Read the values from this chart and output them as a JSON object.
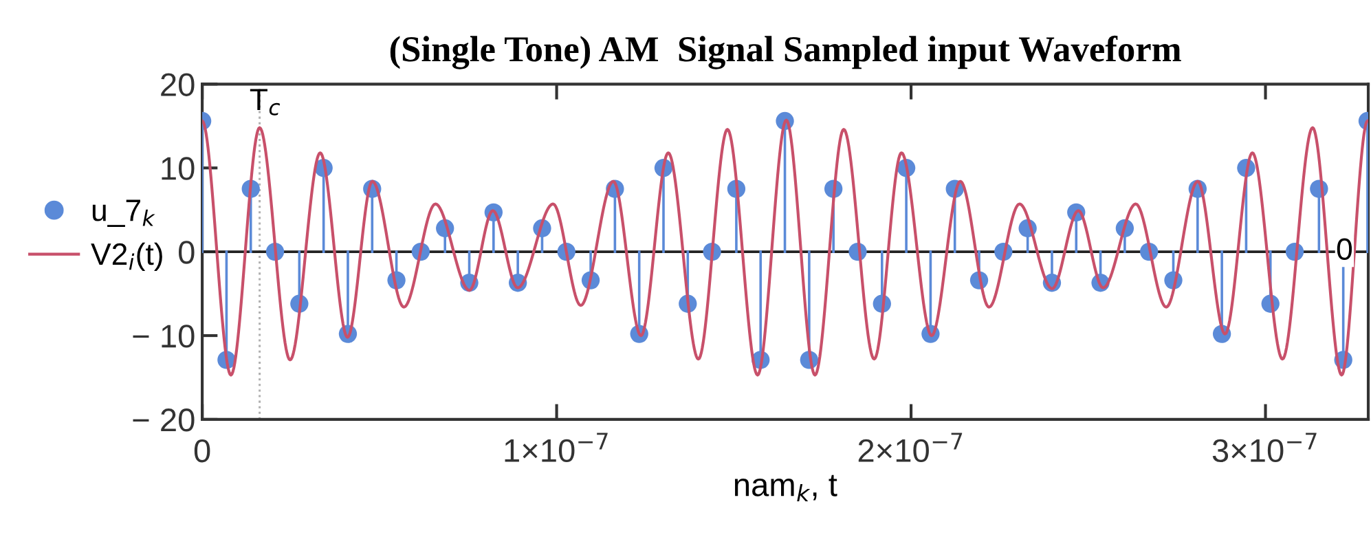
{
  "chart_data": {
    "type": "line",
    "title": "(Single Tone) AM  Signal Sampled input Waveform",
    "xlabel": "nam$_{k}$, t",
    "xlim": [
      0,
      3.29e-07
    ],
    "xticks": [
      0,
      {
        "value": 1e-07,
        "label": "1×10$^{−7}$"
      },
      {
        "value": 2e-07,
        "label": "2×10$^{−7}$"
      },
      {
        "value": 3e-07,
        "label": "3×10$^{−7}$"
      }
    ],
    "ylim": [
      -20,
      20
    ],
    "yticks": [
      {
        "value": -20,
        "label": "− 20"
      },
      {
        "value": -10,
        "label": "− 10"
      },
      0,
      10,
      20
    ],
    "grid": false,
    "legend": "left",
    "ref_lines": [
      {
        "axis": "x",
        "value": 1.62e-08,
        "label": "T$_{c}$",
        "color": "#b0b0b0",
        "line_style": "dotted"
      },
      {
        "axis": "y",
        "value": 0,
        "label": "0",
        "color": "#222222",
        "line_style": "solid"
      }
    ],
    "series": [
      {
        "name": "u_7$_{k}$",
        "type": "lollipop",
        "color": "#5b8ad8",
        "marker": "circle",
        "x": [
          0,
          6.85e-09,
          1.37e-08,
          2.055e-08,
          2.74e-08,
          3.425e-08,
          4.11e-08,
          4.795e-08,
          5.48e-08,
          6.165e-08,
          6.85e-08,
          7.535e-08,
          8.22e-08,
          8.905e-08,
          9.59e-08,
          1.0275e-07,
          1.096e-07,
          1.1645e-07,
          1.233e-07,
          1.3015e-07,
          1.37e-07,
          1.4385e-07,
          1.507e-07,
          1.5755e-07,
          1.644e-07,
          1.7125e-07,
          1.781e-07,
          1.8495e-07,
          1.918e-07,
          1.9865e-07,
          2.055e-07,
          2.1235e-07,
          2.192e-07,
          2.2605e-07,
          2.329e-07,
          2.3975e-07,
          2.466e-07,
          2.5345e-07,
          2.603e-07,
          2.6715e-07,
          2.74e-07,
          2.8085e-07,
          2.877e-07,
          2.9455e-07,
          3.014e-07,
          3.0825e-07,
          3.151e-07,
          3.2195e-07,
          3.288e-07
        ],
        "values": [
          15.6,
          -12.9,
          7.5,
          0,
          -6.2,
          10,
          -9.8,
          7.5,
          -3.4,
          0,
          2.8,
          -3.7,
          4.7,
          -3.7,
          2.8,
          0,
          -3.4,
          7.5,
          -9.8,
          10,
          -6.2,
          0,
          7.5,
          -12.9,
          15.6,
          -12.9,
          7.5,
          0,
          -6.2,
          10,
          -9.8,
          7.5,
          -3.4,
          0,
          2.8,
          -3.7,
          4.7,
          -3.7,
          2.8,
          0,
          -3.4,
          7.5,
          -9.8,
          10,
          -6.2,
          0,
          7.5,
          -12.9,
          15.6
        ]
      },
      {
        "name": "V2$_{i}$(t)",
        "color": "#c8506a",
        "marker": "none",
        "line_style": "solid",
        "x": [
          0,
          8.1e-09,
          1.62e-08,
          2.48e-08,
          3.33e-08,
          4.1e-08,
          4.8e-08,
          5.69e-08,
          6.58e-08,
          7.54e-08,
          8.2e-08,
          8.9e-08,
          9.9e-08,
          1.068e-07,
          1.16e-07,
          1.238e-07,
          1.315e-07,
          1.4e-07,
          1.482e-07,
          1.567e-07,
          1.648e-07,
          1.729e-07,
          1.81e-07,
          1.896e-07,
          1.973e-07,
          2.058e-07,
          2.139e-07,
          2.22e-07,
          2.306e-07,
          2.398e-07,
          2.472e-07,
          2.542e-07,
          2.634e-07,
          2.72e-07,
          2.809e-07,
          2.886e-07,
          2.963e-07,
          3.048e-07,
          3.133e-07,
          3.215e-07,
          3.288e-07
        ],
        "values": [
          15.6,
          -14.7,
          14.8,
          -12.9,
          11.8,
          -10.2,
          8.4,
          -6.6,
          5.7,
          -4.6,
          4.9,
          -4.3,
          5.7,
          -6.4,
          8.4,
          -10,
          11.8,
          -12.8,
          14.6,
          -14.7,
          15.7,
          -14.7,
          14.6,
          -12.8,
          11.8,
          -10,
          8.4,
          -6.6,
          5.7,
          -4.4,
          4.9,
          -4.3,
          5.7,
          -6.6,
          8.4,
          -9.8,
          11.8,
          -12.8,
          14.8,
          -14.7,
          15.6
        ]
      }
    ]
  }
}
